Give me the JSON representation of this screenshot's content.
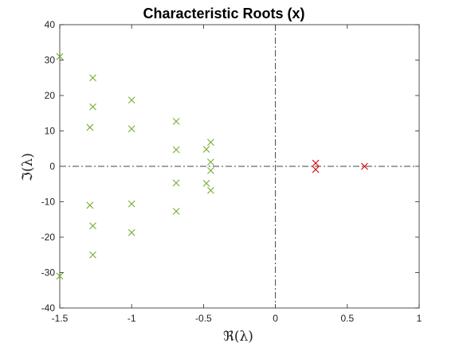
{
  "chart_data": {
    "type": "scatter",
    "title": "Characteristic Roots (x)",
    "xlabel": "ℜ(λ)",
    "ylabel": "ℑ(λ)",
    "xlim": [
      -1.5,
      1
    ],
    "ylim": [
      -40,
      40
    ],
    "xticks": [
      -1.5,
      -1,
      -0.5,
      0,
      0.5,
      1
    ],
    "xtick_labels": [
      "-1.5",
      "-1",
      "-0.5",
      "0",
      "0.5",
      "1"
    ],
    "yticks": [
      -40,
      -30,
      -20,
      -10,
      0,
      10,
      20,
      30,
      40
    ],
    "ytick_labels": [
      "-40",
      "-30",
      "-20",
      "-10",
      "0",
      "10",
      "20",
      "30",
      "40"
    ],
    "grid": false,
    "reference_lines": [
      "x = 0",
      "y = 0"
    ],
    "marker": "x",
    "series": [
      {
        "color": "#77ac30",
        "points": [
          [
            -1.5,
            31
          ],
          [
            -1.5,
            -31
          ],
          [
            -1.27,
            25
          ],
          [
            -1.27,
            -25
          ],
          [
            -1.27,
            16.8
          ],
          [
            -1.27,
            -16.8
          ],
          [
            -1.29,
            11
          ],
          [
            -1.29,
            -11
          ],
          [
            -1.0,
            18.7
          ],
          [
            -1.0,
            -18.7
          ],
          [
            -1.0,
            10.6
          ],
          [
            -1.0,
            -10.6
          ],
          [
            -0.69,
            12.7
          ],
          [
            -0.69,
            -12.7
          ],
          [
            -0.69,
            4.7
          ],
          [
            -0.69,
            -4.7
          ],
          [
            -0.48,
            4.8
          ],
          [
            -0.48,
            -4.8
          ],
          [
            -0.45,
            6.8
          ],
          [
            -0.45,
            -6.8
          ],
          [
            -0.45,
            1.2
          ],
          [
            -0.45,
            -1.2
          ]
        ]
      },
      {
        "color": "#d90000",
        "points": [
          [
            0.28,
            0.9
          ],
          [
            0.28,
            -0.9
          ],
          [
            0.62,
            0
          ]
        ]
      }
    ]
  }
}
